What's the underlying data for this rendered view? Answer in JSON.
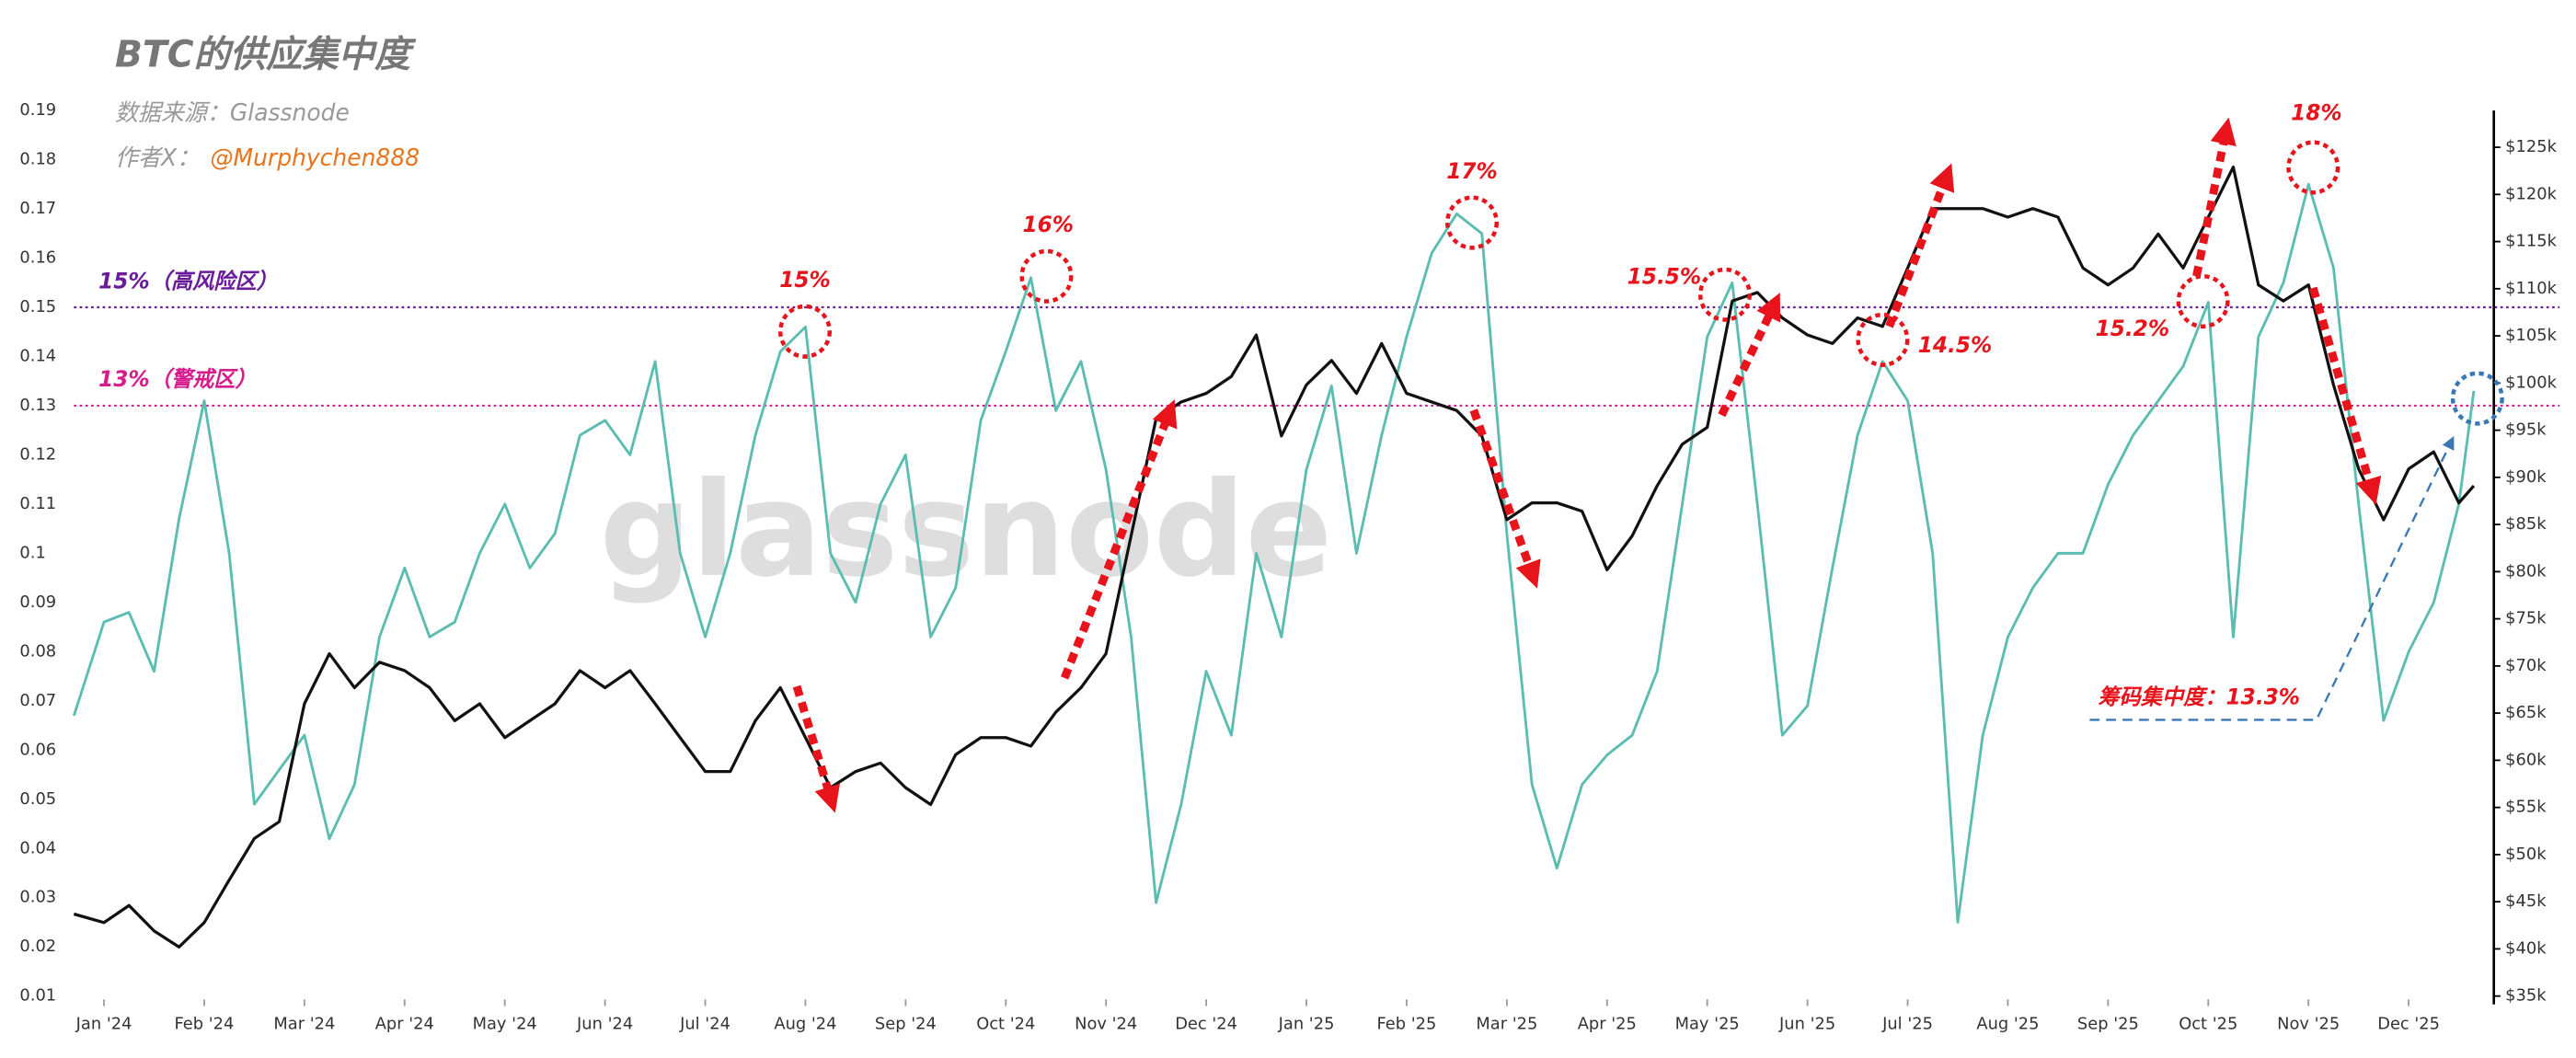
{
  "chart_data": {
    "type": "line",
    "title": "BTC的供应集中度",
    "source": "数据来源：Glassnode",
    "author_label": "作者X：",
    "author_handle": "@Murphychen888",
    "watermark": "glassnode",
    "x": [
      -0.3,
      0,
      0.25,
      0.5,
      0.75,
      1,
      1.25,
      1.5,
      1.75,
      2,
      2.25,
      2.5,
      2.75,
      3,
      3.25,
      3.5,
      3.75,
      4,
      4.25,
      4.5,
      4.75,
      5,
      5.25,
      5.5,
      5.75,
      6,
      6.25,
      6.5,
      6.75,
      7,
      7.25,
      7.5,
      7.75,
      8,
      8.25,
      8.5,
      8.75,
      9,
      9.25,
      9.5,
      9.75,
      10,
      10.25,
      10.5,
      10.75,
      11,
      11.25,
      11.5,
      11.75,
      12,
      12.25,
      12.5,
      12.75,
      13,
      13.25,
      13.5,
      13.75,
      14,
      14.25,
      14.5,
      14.75,
      15,
      15.25,
      15.5,
      15.75,
      16,
      16.25,
      16.5,
      16.75,
      17,
      17.25,
      17.5,
      17.75,
      18,
      18.25,
      18.5,
      18.75,
      19,
      19.25,
      19.5,
      19.75,
      20,
      20.25,
      20.5,
      20.75,
      21,
      21.25,
      21.5,
      21.75,
      22,
      22.25,
      22.5,
      22.75,
      23,
      23.25,
      23.5,
      23.65
    ],
    "xlim": [
      -0.3,
      23.85
    ],
    "xticks": [
      {
        "value": 0,
        "label": "Jan '24"
      },
      {
        "value": 1,
        "label": "Feb '24"
      },
      {
        "value": 2,
        "label": "Mar '24"
      },
      {
        "value": 3,
        "label": "Apr '24"
      },
      {
        "value": 4,
        "label": "May '24"
      },
      {
        "value": 5,
        "label": "Jun '24"
      },
      {
        "value": 6,
        "label": "Jul '24"
      },
      {
        "value": 7,
        "label": "Aug '24"
      },
      {
        "value": 8,
        "label": "Sep '24"
      },
      {
        "value": 9,
        "label": "Oct '24"
      },
      {
        "value": 10,
        "label": "Nov '24"
      },
      {
        "value": 11,
        "label": "Dec '24"
      },
      {
        "value": 12,
        "label": "Jan '25"
      },
      {
        "value": 13,
        "label": "Feb '25"
      },
      {
        "value": 14,
        "label": "Mar '25"
      },
      {
        "value": 15,
        "label": "Apr '25"
      },
      {
        "value": 16,
        "label": "May '25"
      },
      {
        "value": 17,
        "label": "Jun '25"
      },
      {
        "value": 18,
        "label": "Jul '25"
      },
      {
        "value": 19,
        "label": "Aug '25"
      },
      {
        "value": 20,
        "label": "Sep '25"
      },
      {
        "value": 21,
        "label": "Oct '25"
      },
      {
        "value": 22,
        "label": "Nov '25"
      },
      {
        "value": 23,
        "label": "Dec '25"
      }
    ],
    "ylim": [
      0.01,
      0.19
    ],
    "yticks": [
      0.01,
      0.02,
      0.03,
      0.04,
      0.05,
      0.06,
      0.07,
      0.08,
      0.09,
      0.1,
      0.11,
      0.12,
      0.13,
      0.14,
      0.15,
      0.16,
      0.17,
      0.18,
      0.19
    ],
    "y2lim": [
      35,
      128.9
    ],
    "y2ticks": [
      {
        "value": 35,
        "label": "$35k"
      },
      {
        "value": 40,
        "label": "$40k"
      },
      {
        "value": 45,
        "label": "$45k"
      },
      {
        "value": 50,
        "label": "$50k"
      },
      {
        "value": 55,
        "label": "$55k"
      },
      {
        "value": 60,
        "label": "$60k"
      },
      {
        "value": 65,
        "label": "$65k"
      },
      {
        "value": 70,
        "label": "$70k"
      },
      {
        "value": 75,
        "label": "$75k"
      },
      {
        "value": 80,
        "label": "$80k"
      },
      {
        "value": 85,
        "label": "$85k"
      },
      {
        "value": 90,
        "label": "$90k"
      },
      {
        "value": 95,
        "label": "$95k"
      },
      {
        "value": 100,
        "label": "$100k"
      },
      {
        "value": 105,
        "label": "$105k"
      },
      {
        "value": 110,
        "label": "$110k"
      },
      {
        "value": 115,
        "label": "$115k"
      },
      {
        "value": 120,
        "label": "$120k"
      },
      {
        "value": 125,
        "label": "$125k"
      }
    ],
    "series": [
      {
        "color": "#5bbcb0",
        "axis": "y",
        "values": [
          0.067,
          0.086,
          0.088,
          0.076,
          0.107,
          0.131,
          0.1,
          0.049,
          0.056,
          0.063,
          0.042,
          0.053,
          0.083,
          0.097,
          0.083,
          0.086,
          0.1,
          0.11,
          0.097,
          0.104,
          0.124,
          0.127,
          0.12,
          0.139,
          0.1,
          0.083,
          0.1,
          0.124,
          0.141,
          0.146,
          0.1,
          0.09,
          0.11,
          0.12,
          0.083,
          0.093,
          0.127,
          0.141,
          0.156,
          0.129,
          0.139,
          0.117,
          0.083,
          0.029,
          0.049,
          0.076,
          0.063,
          0.1,
          0.083,
          0.117,
          0.134,
          0.1,
          0.124,
          0.144,
          0.161,
          0.169,
          0.165,
          0.104,
          0.053,
          0.036,
          0.053,
          0.059,
          0.063,
          0.076,
          0.11,
          0.144,
          0.155,
          0.11,
          0.063,
          0.069,
          0.097,
          0.124,
          0.139,
          0.131,
          0.1,
          0.025,
          0.063,
          0.083,
          0.093,
          0.1,
          0.1,
          0.114,
          0.124,
          0.131,
          0.138,
          0.151,
          0.083,
          0.144,
          0.155,
          0.175,
          0.158,
          0.11,
          0.066,
          0.08,
          0.09,
          0.11,
          0.133
        ]
      },
      {
        "color": "#111111",
        "axis": "y2",
        "values": [
          43.7,
          42.8,
          44.6,
          41.9,
          40.2,
          42.8,
          47.3,
          51.7,
          53.5,
          66.0,
          71.3,
          67.7,
          70.4,
          69.5,
          67.7,
          64.2,
          66.0,
          62.4,
          64.2,
          66.0,
          69.5,
          67.7,
          69.5,
          66.0,
          62.4,
          58.8,
          58.8,
          64.2,
          67.7,
          62.4,
          57.1,
          58.8,
          59.7,
          57.1,
          55.3,
          60.6,
          62.4,
          62.4,
          61.5,
          65.1,
          67.7,
          71.3,
          83.8,
          96.2,
          98.0,
          98.9,
          100.7,
          105.1,
          94.4,
          99.8,
          102.4,
          98.9,
          104.2,
          98.9,
          98.0,
          97.1,
          94.4,
          85.5,
          87.3,
          87.3,
          86.4,
          80.2,
          83.8,
          89.1,
          93.5,
          95.3,
          108.7,
          109.6,
          106.9,
          105.1,
          104.2,
          106.9,
          106.0,
          112.2,
          118.5,
          118.5,
          118.5,
          117.6,
          118.5,
          117.6,
          112.2,
          110.4,
          112.2,
          115.8,
          112.2,
          117.6,
          122.9,
          110.4,
          108.7,
          110.4,
          99.8,
          90.9,
          85.5,
          90.9,
          92.7,
          87.3,
          89.1
        ]
      }
    ],
    "reference_lines": [
      {
        "value": 0.15,
        "label": "15%（高风险区）",
        "color": "#6a1b9a"
      },
      {
        "value": 0.13,
        "label": "13%（警戒区）",
        "color": "#d81b8c"
      }
    ],
    "annotations": [
      "15%",
      "16%",
      "17%",
      "15.5%",
      "14.5%",
      "15.2%",
      "18%",
      "筹码集中度：13.3%"
    ]
  }
}
